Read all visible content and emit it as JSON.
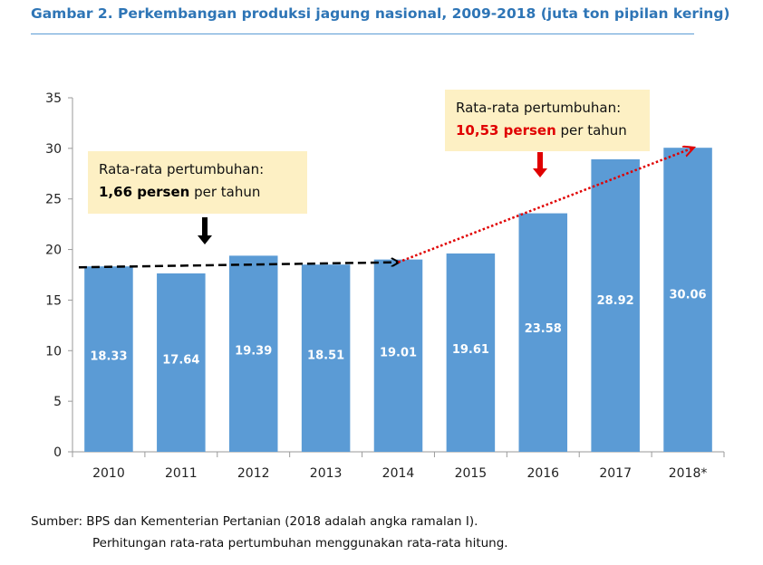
{
  "title": "Gambar 2. Perkembangan produksi jagung nasional, 2009-2018 (juta ton pipilan kering)",
  "source": {
    "line1": "Sumber: BPS dan Kementerian Pertanian (2018 adalah angka ramalan I).",
    "line2": "Perhitungan rata-rata pertumbuhan menggunakan rata-rata hitung."
  },
  "colors": {
    "bar": "#5b9bd5",
    "title": "#2e75b6",
    "annotation_bg": "#fdf0c4",
    "growth_high": "#e00000",
    "growth_low": "#000000"
  },
  "chart_data": {
    "type": "bar",
    "categories": [
      "2010",
      "2011",
      "2012",
      "2013",
      "2014",
      "2015",
      "2016",
      "2017",
      "2018*"
    ],
    "values": [
      18.33,
      17.64,
      19.39,
      18.51,
      19.01,
      19.61,
      23.58,
      28.92,
      30.06
    ],
    "value_labels": [
      "18.33",
      "17.64",
      "19.39",
      "18.51",
      "19.01",
      "19.61",
      "23.58",
      "28.92",
      "30.06"
    ],
    "ylim": [
      0,
      35
    ],
    "yticks": [
      0,
      5,
      10,
      15,
      20,
      25,
      30,
      35
    ],
    "grid": false,
    "legend": false,
    "annotations": [
      {
        "line1": "Rata-rata pertumbuhan:",
        "rate": "1,66 persen",
        "suffix": " per tahun",
        "trend_from": "2010",
        "trend_to": "2014",
        "style": "dashed"
      },
      {
        "line1": "Rata-rata pertumbuhan:",
        "rate": "10,53 persen",
        "suffix": " per tahun",
        "trend_from": "2014",
        "trend_to": "2018*",
        "style": "dotted"
      }
    ]
  }
}
